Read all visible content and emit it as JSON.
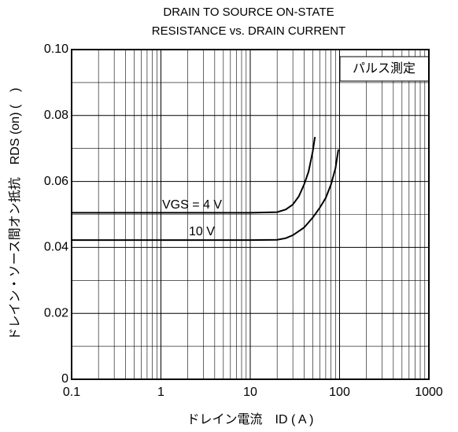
{
  "chart_data": {
    "type": "line",
    "title": [
      "DRAIN TO SOURCE ON-STATE",
      "RESISTANCE vs. DRAIN CURRENT"
    ],
    "x_label": "ドレイン電流　ID ( A )",
    "y_label": "ドレイン・ソース間オン抵抗　RDS (on) (　)",
    "annotation": "パルス測定",
    "log_x": true,
    "grid": true,
    "minor_grid": true,
    "xlim": [
      0.1,
      1000
    ],
    "xticks": [
      0.1,
      1,
      10,
      100,
      1000
    ],
    "ylim": [
      0,
      0.1
    ],
    "yticks": [
      0,
      0.02,
      0.04,
      0.06,
      0.08,
      {
        "value": 0.1,
        "label": "0.10"
      }
    ],
    "minor_yticks": [
      0.01,
      0.03,
      0.05,
      0.07,
      0.09
    ],
    "series": [
      {
        "name": "VGS = 4 V",
        "color": "#000000",
        "x": [
          0.1,
          1,
          10,
          20,
          25,
          30,
          35,
          40,
          45,
          50,
          53
        ],
        "values": [
          0.0505,
          0.0505,
          0.0505,
          0.0507,
          0.0515,
          0.053,
          0.0555,
          0.059,
          0.063,
          0.069,
          0.0735
        ]
      },
      {
        "name": "10 V",
        "color": "#000000",
        "x": [
          0.1,
          1,
          10,
          20,
          25,
          30,
          40,
          50,
          60,
          70,
          80,
          90,
          97
        ],
        "values": [
          0.0422,
          0.0422,
          0.0422,
          0.0423,
          0.0428,
          0.0437,
          0.046,
          0.049,
          0.052,
          0.055,
          0.059,
          0.064,
          0.0697
        ]
      }
    ]
  }
}
